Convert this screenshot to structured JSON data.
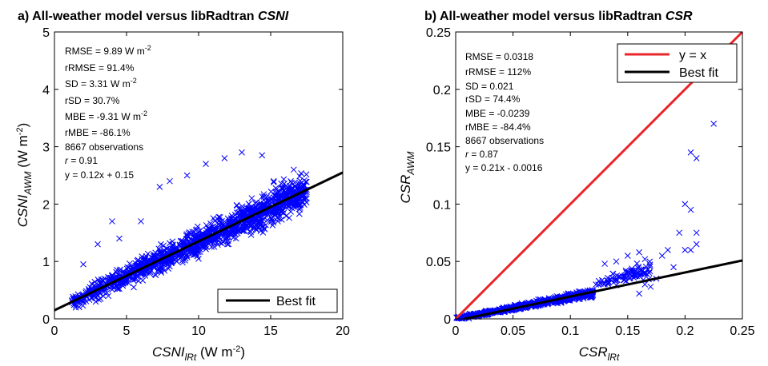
{
  "chart_data": [
    {
      "type": "scatter",
      "title_prefix": "a) All-weather model versus libRadtran ",
      "title_italic": "CSNI",
      "xlabel": {
        "main": "CSNI",
        "sub": "lRt",
        "unit": " (W m",
        "sup": "-2",
        "close": ")"
      },
      "ylabel": {
        "main": "CSNI",
        "sub": "AWM",
        "unit": " (W m",
        "sup": "-2",
        "close": ")"
      },
      "xlim": [
        0,
        20
      ],
      "ylim": [
        0,
        5
      ],
      "xticks": [
        "0",
        "5",
        "10",
        "15",
        "20"
      ],
      "xtick_values": [
        0,
        5,
        10,
        15,
        20
      ],
      "yticks": [
        "0",
        "1",
        "2",
        "3",
        "4",
        "5"
      ],
      "ytick_values": [
        0,
        1,
        2,
        3,
        4,
        5
      ],
      "stats": [
        {
          "text": "RMSE = 9.89 W m",
          "sup": "-2"
        },
        {
          "text": "rRMSE = 91.4%"
        },
        {
          "text": "SD = 3.31 W m",
          "sup": "-2"
        },
        {
          "text": "rSD = 30.7%"
        },
        {
          "text": "MBE = -9.31 W m",
          "sup": "-2"
        },
        {
          "text": "rMBE = -86.1%"
        },
        {
          "text": "8667 observations"
        },
        {
          "italic": "r",
          "text": " = 0.91"
        },
        {
          "text": "y = 0.12x + 0.15"
        }
      ],
      "best_fit": {
        "slope": 0.12,
        "intercept": 0.15
      },
      "legend": [
        "Best fit"
      ],
      "legend_position": "bottom-right",
      "scatter_color": "#0000ff",
      "scatter_clusters": [
        {
          "x_range": [
            1.2,
            17.5
          ],
          "y_center_slope": 0.12,
          "y_center_intercept": 0.15,
          "spread": 0.38,
          "count": 1400
        }
      ],
      "scatter_points": [
        [
          2.0,
          0.95
        ],
        [
          3.0,
          1.3
        ],
        [
          4.5,
          1.4
        ],
        [
          6.0,
          1.7
        ],
        [
          7.3,
          2.3
        ],
        [
          8.0,
          2.4
        ],
        [
          9.2,
          2.5
        ],
        [
          10.5,
          2.7
        ],
        [
          11.8,
          2.8
        ],
        [
          13.0,
          2.9
        ],
        [
          14.4,
          2.85
        ],
        [
          16.6,
          2.6
        ],
        [
          3.2,
          0.35
        ],
        [
          5.5,
          0.55
        ],
        [
          8.5,
          1.0
        ],
        [
          12.0,
          1.3
        ],
        [
          15.5,
          1.7
        ],
        [
          4.0,
          1.7
        ]
      ]
    },
    {
      "type": "scatter",
      "title_prefix": "b) All-weather model versus libRadtran ",
      "title_italic": "CSR",
      "xlabel": {
        "main": "CSR",
        "sub": "lRt"
      },
      "ylabel": {
        "main": "CSR",
        "sub": "AWM"
      },
      "xlim": [
        0,
        0.25
      ],
      "ylim": [
        0,
        0.25
      ],
      "xticks": [
        "0",
        "0.05",
        "0.1",
        "0.15",
        "0.2",
        "0.25"
      ],
      "xtick_values": [
        0,
        0.05,
        0.1,
        0.15,
        0.2,
        0.25
      ],
      "yticks": [
        "0",
        "0.05",
        "0.1",
        "0.15",
        "0.2",
        "0.25"
      ],
      "ytick_values": [
        0,
        0.05,
        0.1,
        0.15,
        0.2,
        0.25
      ],
      "stats": [
        {
          "text": "RMSE = 0.0318"
        },
        {
          "text": "rRMSE = 112%"
        },
        {
          "text": "SD = 0.021"
        },
        {
          "text": "rSD = 74.4%"
        },
        {
          "text": "MBE = -0.0239"
        },
        {
          "text": "rMBE = -84.4%"
        },
        {
          "text": "8667 observations"
        },
        {
          "italic": "r",
          "text": " = 0.87"
        },
        {
          "text": "y = 0.21x - 0.0016"
        }
      ],
      "identity_line": {
        "slope": 1,
        "intercept": 0
      },
      "best_fit": {
        "slope": 0.21,
        "intercept": -0.0016
      },
      "legend": [
        "y = x",
        "Best fit"
      ],
      "legend_position": "top-right",
      "identity_color": "#e8262a",
      "scatter_color": "#0000ff",
      "scatter_clusters": [
        {
          "x_range": [
            0.0,
            0.12
          ],
          "y_center_slope": 0.19,
          "y_center_intercept": 0.0,
          "spread": 0.004,
          "count": 700
        },
        {
          "x_range": [
            0.12,
            0.17
          ],
          "y_center_slope": 0.25,
          "y_center_intercept": 0.0,
          "spread": 0.01,
          "count": 90
        }
      ],
      "scatter_points": [
        [
          0.13,
          0.048
        ],
        [
          0.14,
          0.05
        ],
        [
          0.15,
          0.055
        ],
        [
          0.16,
          0.058
        ],
        [
          0.165,
          0.052
        ],
        [
          0.165,
          0.03
        ],
        [
          0.17,
          0.028
        ],
        [
          0.16,
          0.022
        ],
        [
          0.175,
          0.035
        ],
        [
          0.18,
          0.055
        ],
        [
          0.185,
          0.06
        ],
        [
          0.19,
          0.045
        ],
        [
          0.195,
          0.075
        ],
        [
          0.2,
          0.06
        ],
        [
          0.205,
          0.06
        ],
        [
          0.2,
          0.1
        ],
        [
          0.205,
          0.095
        ],
        [
          0.21,
          0.075
        ],
        [
          0.21,
          0.065
        ],
        [
          0.205,
          0.145
        ],
        [
          0.21,
          0.14
        ],
        [
          0.225,
          0.17
        ]
      ]
    }
  ]
}
